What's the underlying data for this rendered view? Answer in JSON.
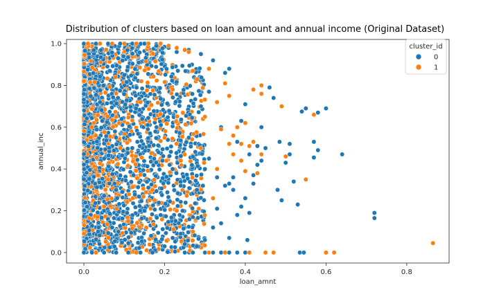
{
  "chart_data": {
    "type": "scatter",
    "title": "Distribution of clusters based on loan amount and annual income (Original Dataset)",
    "xlabel": "loan_amnt",
    "ylabel": "annual_inc",
    "xlim": [
      -0.043,
      0.905
    ],
    "ylim": [
      -0.05,
      1.02
    ],
    "xticks": [
      "0.0",
      "0.2",
      "0.4",
      "0.6",
      "0.8"
    ],
    "yticks": [
      "0.0",
      "0.2",
      "0.4",
      "0.6",
      "0.8",
      "1.0"
    ],
    "grid": false,
    "legend": {
      "title": "cluster_id",
      "placement": "top-right"
    },
    "series": [
      {
        "name": "0",
        "color": "#1f77b4",
        "points": [
          [
            0.72,
            0.19
          ],
          [
            0.72,
            0.165
          ],
          [
            0.64,
            0.47
          ],
          [
            0.6,
            0.69
          ],
          [
            0.58,
            0.49
          ],
          [
            0.58,
            0.67
          ],
          [
            0.57,
            0.53
          ],
          [
            0.57,
            0.455
          ],
          [
            0.55,
            0.69
          ],
          [
            0.54,
            0.675
          ],
          [
            0.53,
            0.23
          ],
          [
            0.535,
            0.0
          ],
          [
            0.545,
            0.0
          ],
          [
            0.52,
            0.34
          ],
          [
            0.51,
            0.52
          ],
          [
            0.51,
            0.47
          ],
          [
            0.5,
            0.43
          ],
          [
            0.49,
            0.25
          ],
          [
            0.48,
            0.3
          ],
          [
            0.485,
            0.53
          ],
          [
            0.47,
            0.74
          ],
          [
            0.46,
            0.79
          ],
          [
            0.44,
            0.44
          ],
          [
            0.43,
            0.51
          ],
          [
            0.45,
            0.5
          ],
          [
            0.42,
            0.33
          ],
          [
            0.41,
            0.19
          ],
          [
            0.4,
            0.26
          ],
          [
            0.39,
            0.22
          ],
          [
            0.38,
            0.53
          ],
          [
            0.37,
            0.36
          ],
          [
            0.36,
            0.88
          ],
          [
            0.35,
            0.86
          ],
          [
            0.34,
            0.14
          ],
          [
            0.33,
            0.21
          ],
          [
            0.32,
            0.92
          ],
          [
            0.31,
            0.77
          ],
          [
            0.3,
            0.4
          ],
          [
            0.29,
            0.95
          ],
          [
            0.28,
            0.3
          ],
          [
            0.27,
            0.17
          ],
          [
            0.26,
            0.97
          ],
          [
            0.25,
            0.04
          ],
          [
            0.24,
            0.09
          ],
          [
            0.37,
            0.3
          ],
          [
            0.36,
            0.33
          ],
          [
            0.35,
            0.32
          ],
          [
            0.4,
            0.0
          ],
          [
            0.38,
            0.0
          ],
          [
            0.3,
            0.0
          ],
          [
            0.32,
            0.0
          ],
          [
            0.34,
            0.0
          ],
          [
            0.405,
            0.06
          ],
          [
            0.42,
            0.37
          ],
          [
            0.43,
            0.42
          ],
          [
            0.39,
            0.63
          ],
          [
            0.4,
            0.71
          ],
          [
            0.44,
            0.6
          ],
          [
            0.41,
            0.47
          ],
          [
            0.38,
            0.18
          ],
          [
            0.32,
            0.12
          ],
          [
            0.36,
            0.07
          ],
          [
            0.3,
            0.06
          ],
          [
            0.28,
            0.03
          ],
          [
            0.22,
            0.07
          ],
          [
            0.2,
            0.03
          ],
          [
            0.23,
            0.96
          ],
          [
            0.21,
            0.98
          ],
          [
            0.18,
            0.99
          ],
          [
            0.15,
            1.0
          ],
          [
            0.12,
            1.0
          ],
          [
            0.09,
            1.0
          ],
          [
            0.06,
            1.0
          ],
          [
            0.03,
            1.0
          ],
          [
            0.0,
            1.0
          ],
          [
            0.0,
            0.0
          ],
          [
            0.02,
            0.0
          ],
          [
            0.05,
            0.0
          ],
          [
            0.08,
            0.0
          ],
          [
            0.11,
            0.0
          ],
          [
            0.14,
            0.0
          ],
          [
            0.17,
            0.0
          ],
          [
            0.25,
            0.0
          ],
          [
            0.27,
            0.0
          ],
          [
            0.36,
            0.0
          ],
          [
            0.12,
            0.5
          ],
          [
            0.05,
            0.45
          ],
          [
            0.08,
            0.3
          ],
          [
            0.15,
            0.2
          ],
          [
            0.18,
            0.6
          ],
          [
            0.1,
            0.85
          ],
          [
            0.22,
            0.4
          ],
          [
            0.26,
            0.55
          ],
          [
            0.31,
            0.45
          ],
          [
            0.34,
            0.6
          ],
          [
            0.29,
            0.7
          ],
          [
            0.33,
            0.36
          ],
          [
            0.24,
            0.32
          ],
          [
            0.07,
            0.12
          ],
          [
            0.04,
            0.72
          ]
        ]
      },
      {
        "name": "1",
        "color": "#ff7f0e",
        "points": [
          [
            0.865,
            0.045
          ],
          [
            0.62,
            0.0
          ],
          [
            0.6,
            0.0
          ],
          [
            0.57,
            0.66
          ],
          [
            0.55,
            0.35
          ],
          [
            0.5,
            0.46
          ],
          [
            0.49,
            0.7
          ],
          [
            0.47,
            0.0
          ],
          [
            0.45,
            0.0
          ],
          [
            0.44,
            0.8
          ],
          [
            0.44,
            0.76
          ],
          [
            0.44,
            0.47
          ],
          [
            0.43,
            0.38
          ],
          [
            0.42,
            0.53
          ],
          [
            0.41,
            0.51
          ],
          [
            0.4,
            0.39
          ],
          [
            0.39,
            0.44
          ],
          [
            0.37,
            0.56
          ],
          [
            0.36,
            0.75
          ],
          [
            0.35,
            0.81
          ],
          [
            0.34,
            0.59
          ],
          [
            0.33,
            0.4
          ],
          [
            0.32,
            0.26
          ],
          [
            0.31,
            0.88
          ],
          [
            0.38,
            0.6
          ],
          [
            0.39,
            0.52
          ],
          [
            0.37,
            0.47
          ],
          [
            0.3,
            0.65
          ],
          [
            0.29,
            0.5
          ],
          [
            0.28,
            0.83
          ],
          [
            0.27,
            0.87
          ],
          [
            0.26,
            0.96
          ],
          [
            0.25,
            0.97
          ],
          [
            0.23,
            0.98
          ],
          [
            0.21,
            0.99
          ],
          [
            0.19,
            1.0
          ],
          [
            0.16,
            1.0
          ],
          [
            0.13,
            1.0
          ],
          [
            0.1,
            1.0
          ],
          [
            0.07,
            1.0
          ],
          [
            0.04,
            1.0
          ],
          [
            0.01,
            1.0
          ],
          [
            0.0,
            0.82
          ],
          [
            0.02,
            0.6
          ],
          [
            0.06,
            0.35
          ],
          [
            0.09,
            0.5
          ],
          [
            0.14,
            0.72
          ],
          [
            0.17,
            0.3
          ],
          [
            0.2,
            0.55
          ],
          [
            0.23,
            0.2
          ],
          [
            0.27,
            0.1
          ],
          [
            0.22,
            0.78
          ],
          [
            0.11,
            0.15
          ],
          [
            0.03,
            0.0
          ],
          [
            0.13,
            0.0
          ],
          [
            0.31,
            0.0
          ],
          [
            0.35,
            0.0
          ],
          [
            0.41,
            0.0
          ],
          [
            0.33,
            0.72
          ],
          [
            0.36,
            0.52
          ],
          [
            0.4,
            0.62
          ],
          [
            0.42,
            0.78
          ],
          [
            0.24,
            0.44
          ],
          [
            0.16,
            0.88
          ],
          [
            0.08,
            0.65
          ],
          [
            0.05,
            0.22
          ]
        ]
      }
    ]
  }
}
